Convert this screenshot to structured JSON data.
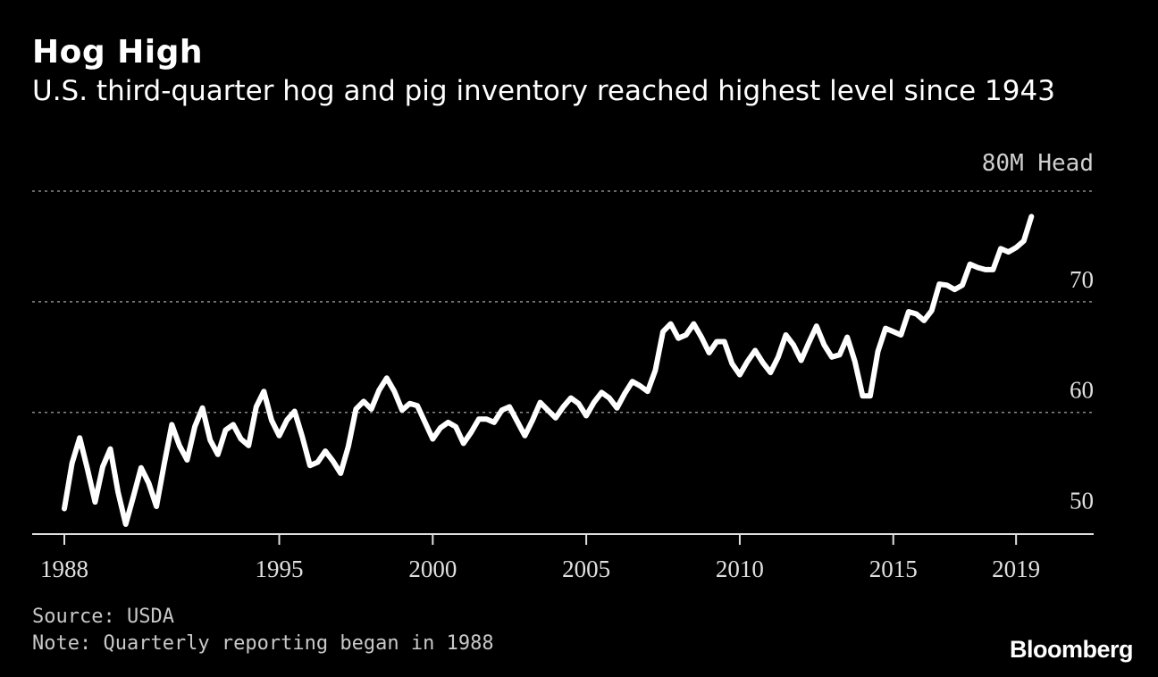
{
  "title": "Hog High",
  "subtitle": "U.S. third-quarter hog and pig inventory reached highest level since 1943",
  "unit_label": "80M Head",
  "source": "Source: USDA",
  "note": "Note: Quarterly reporting began in 1988",
  "brand": "Bloomberg",
  "colors": {
    "background": "#000000",
    "line": "#ffffff",
    "grid": "#8a8a8a"
  },
  "chart_data": {
    "type": "line",
    "title": "Hog High",
    "subtitle": "U.S. third-quarter hog and pig inventory reached highest level since 1943",
    "ylabel": "80M Head",
    "ylim": [
      49,
      80
    ],
    "xlim": [
      1988,
      2019.75
    ],
    "grid": true,
    "x_ticks": [
      1988,
      1995,
      2000,
      2005,
      2010,
      2015,
      2019
    ],
    "x_tick_labels": [
      "1988",
      "1995",
      "2000",
      "2005",
      "2010",
      "2015",
      "2019"
    ],
    "y_ticks": [
      50,
      60,
      70
    ],
    "y_tick_labels": [
      "50",
      "60",
      "70"
    ],
    "x_start": 1988,
    "x_step": 0.25,
    "series": [
      {
        "values": [
          51.3,
          55.4,
          57.7,
          54.9,
          51.9,
          55.1,
          56.7,
          52.8,
          49.9,
          52.4,
          55.0,
          53.6,
          51.5,
          55.3,
          58.9,
          57.0,
          55.7,
          58.7,
          60.4,
          57.5,
          56.2,
          58.4,
          58.9,
          57.6,
          57.0,
          60.5,
          61.9,
          59.3,
          57.9,
          59.3,
          60.1,
          57.8,
          55.2,
          55.5,
          56.5,
          55.6,
          54.5,
          56.9,
          60.3,
          61.0,
          60.3,
          62.0,
          63.1,
          61.9,
          60.2,
          60.8,
          60.6,
          59.1,
          57.6,
          58.6,
          59.1,
          58.7,
          57.2,
          58.2,
          59.4,
          59.4,
          59.1,
          60.2,
          60.5,
          59.2,
          57.9,
          59.3,
          60.9,
          60.2,
          59.5,
          60.5,
          61.3,
          60.8,
          59.7,
          60.9,
          61.8,
          61.3,
          60.4,
          61.7,
          62.8,
          62.4,
          61.9,
          63.8,
          67.3,
          68.0,
          66.7,
          67.0,
          68.0,
          66.8,
          65.4,
          66.4,
          66.4,
          64.4,
          63.4,
          64.6,
          65.6,
          64.5,
          63.6,
          65.0,
          67.0,
          66.1,
          64.7,
          66.3,
          67.8,
          66.1,
          65.0,
          65.2,
          66.8,
          64.6,
          61.5,
          61.5,
          65.5,
          67.6,
          67.3,
          67.0,
          69.1,
          68.9,
          68.3,
          69.2,
          71.6,
          71.5,
          71.1,
          71.5,
          73.4,
          73.1,
          72.9,
          72.9,
          74.8,
          74.5,
          74.9,
          75.5,
          77.7
        ]
      }
    ]
  }
}
